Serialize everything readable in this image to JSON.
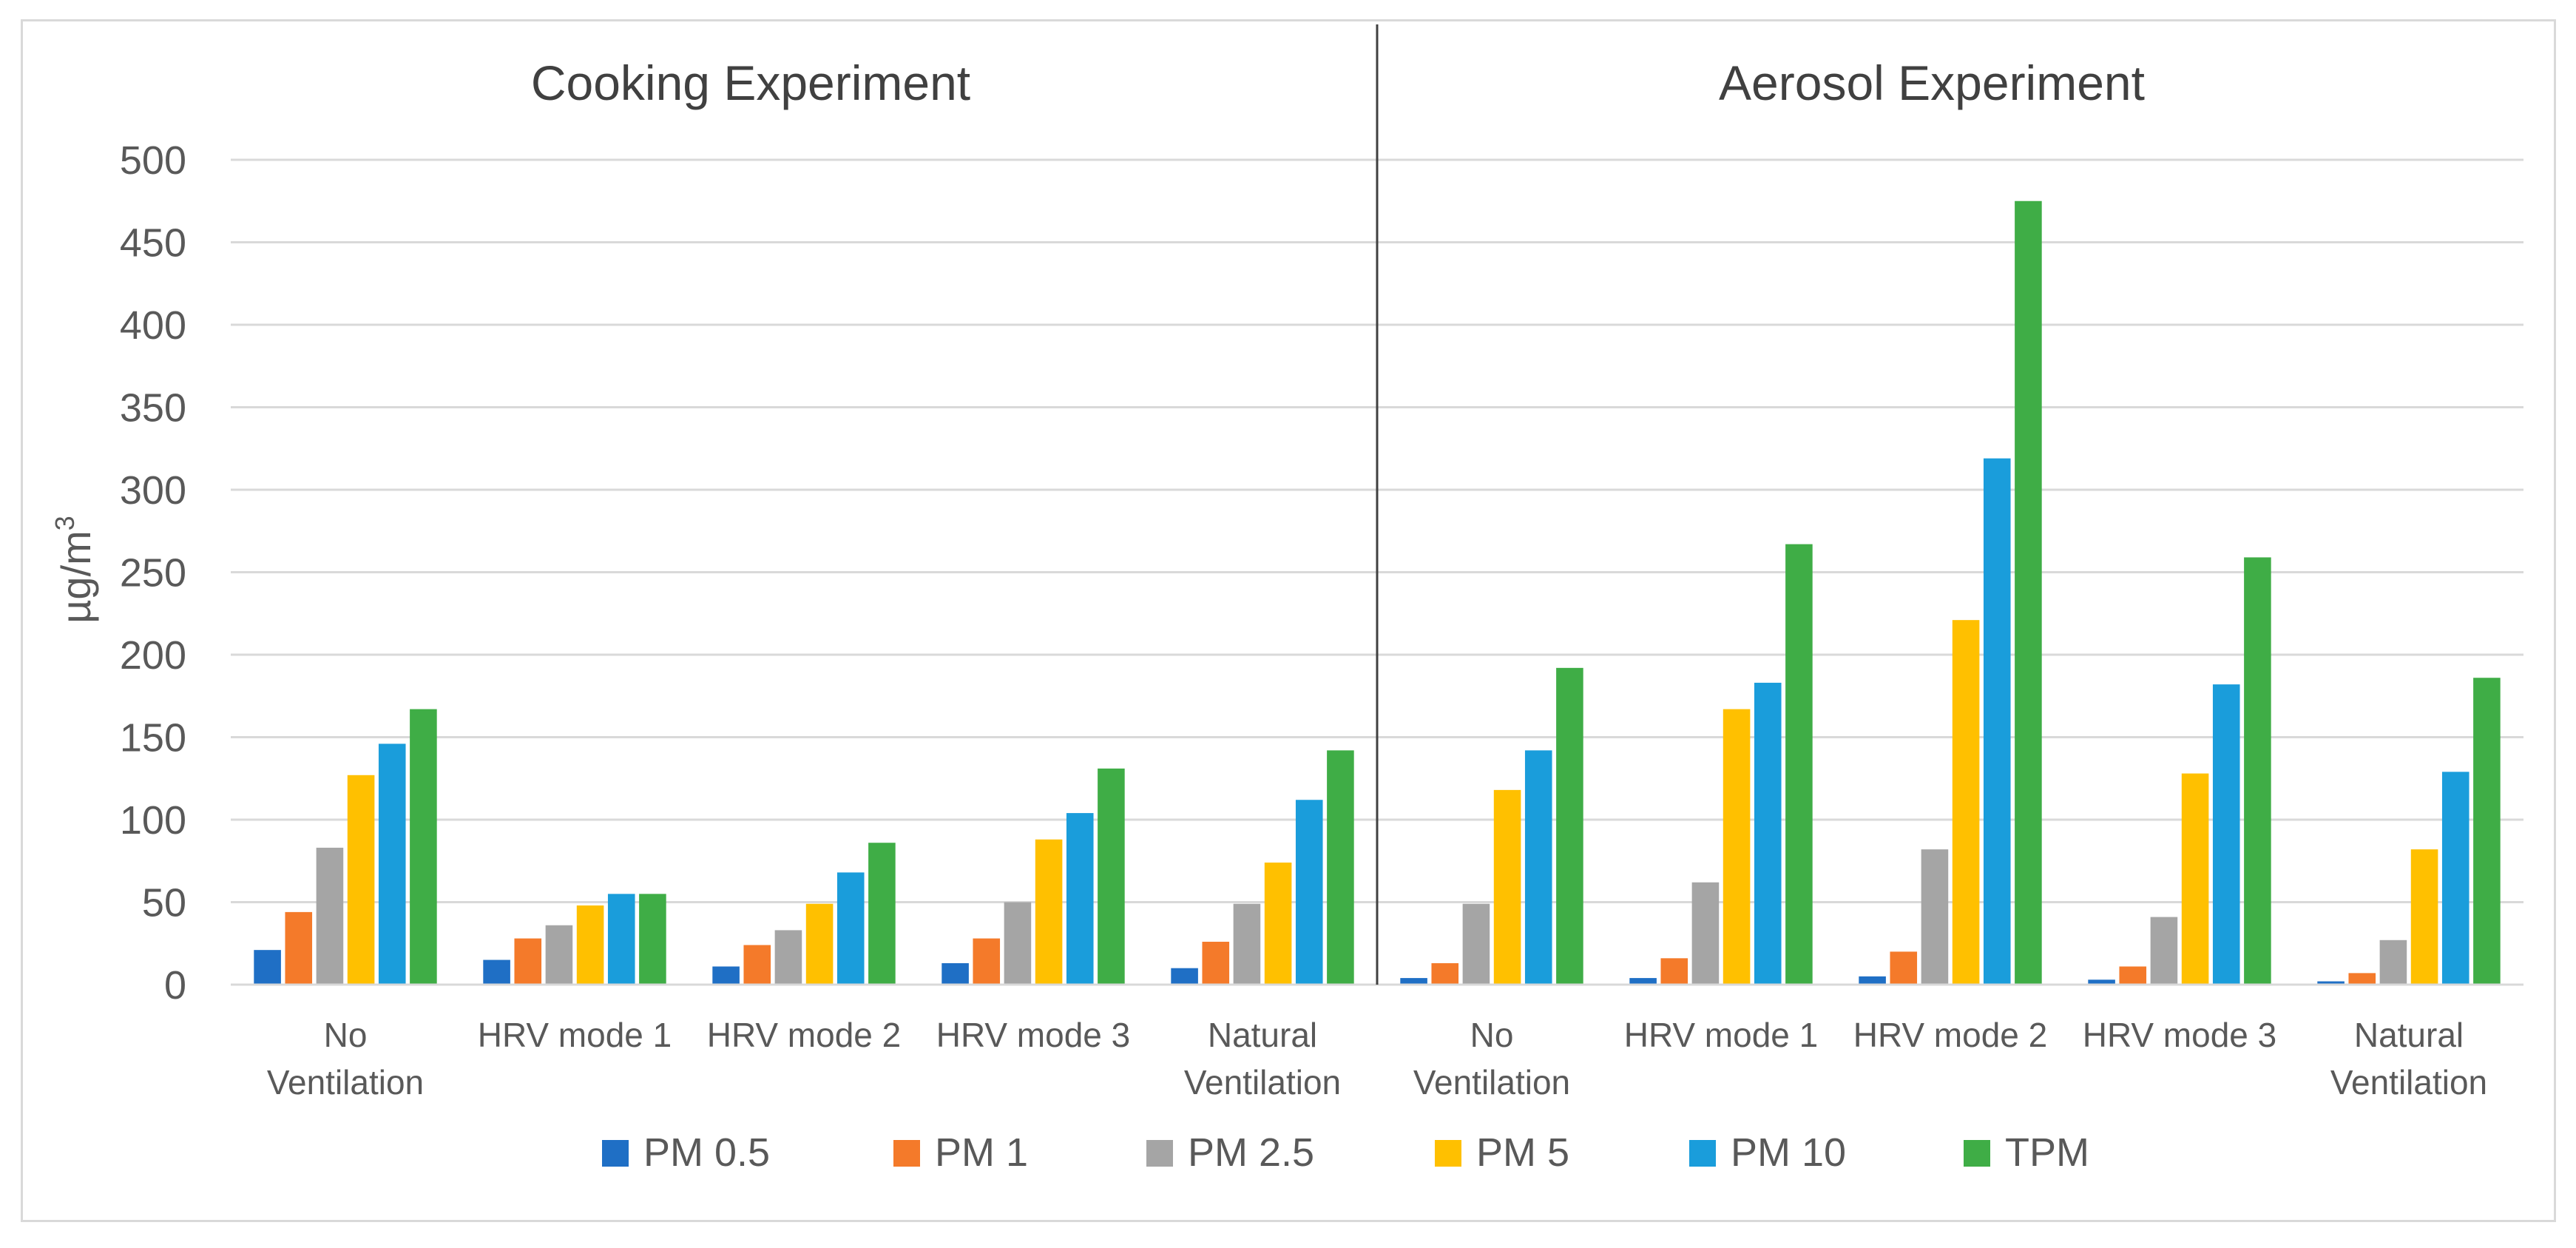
{
  "chart_data": {
    "type": "bar",
    "ylabel": "µg/m",
    "ylabel_superscript": "3",
    "ylim": [
      0,
      500
    ],
    "yticks": [
      0,
      50,
      100,
      150,
      200,
      250,
      300,
      350,
      400,
      450,
      500
    ],
    "grid": true,
    "legend_position": "bottom",
    "series_names": [
      "PM 0.5",
      "PM 1",
      "PM 2.5",
      "PM 5",
      "PM 10",
      "TPM"
    ],
    "series_colors": [
      "#1f6fc5",
      "#f47a2a",
      "#a5a5a5",
      "#ffc000",
      "#1a9ddb",
      "#3fad46"
    ],
    "panels": [
      {
        "title": "Cooking Experiment",
        "categories": [
          [
            "No",
            "Ventilation"
          ],
          [
            "HRV mode 1"
          ],
          [
            "HRV mode 2"
          ],
          [
            "HRV mode 3"
          ],
          [
            "Natural",
            "Ventilation"
          ]
        ],
        "series": [
          {
            "name": "PM 0.5",
            "values": [
              21,
              15,
              11,
              13,
              10
            ]
          },
          {
            "name": "PM 1",
            "values": [
              44,
              28,
              24,
              28,
              26
            ]
          },
          {
            "name": "PM 2.5",
            "values": [
              83,
              36,
              33,
              50,
              49
            ]
          },
          {
            "name": "PM 5",
            "values": [
              127,
              48,
              49,
              88,
              74
            ]
          },
          {
            "name": "PM 10",
            "values": [
              146,
              55,
              68,
              104,
              112
            ]
          },
          {
            "name": "TPM",
            "values": [
              167,
              55,
              86,
              131,
              142
            ]
          }
        ]
      },
      {
        "title": "Aerosol Experiment",
        "categories": [
          [
            "No",
            "Ventilation"
          ],
          [
            "HRV mode 1"
          ],
          [
            "HRV mode 2"
          ],
          [
            "HRV mode 3"
          ],
          [
            "Natural",
            "Ventilation"
          ]
        ],
        "series": [
          {
            "name": "PM 0.5",
            "values": [
              4,
              4,
              5,
              3,
              2
            ]
          },
          {
            "name": "PM 1",
            "values": [
              13,
              16,
              20,
              11,
              7
            ]
          },
          {
            "name": "PM 2.5",
            "values": [
              49,
              62,
              82,
              41,
              27
            ]
          },
          {
            "name": "PM 5",
            "values": [
              118,
              167,
              221,
              128,
              82
            ]
          },
          {
            "name": "PM 10",
            "values": [
              142,
              183,
              319,
              182,
              129
            ]
          },
          {
            "name": "TPM",
            "values": [
              192,
              267,
              475,
              259,
              186
            ]
          }
        ]
      }
    ]
  }
}
